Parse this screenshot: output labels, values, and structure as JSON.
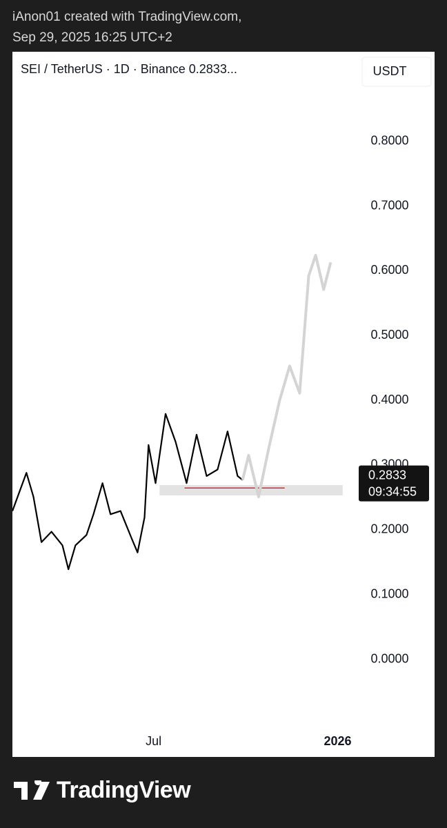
{
  "header": {
    "credit": "iAnon01 created with TradingView.com,",
    "date": "Sep 29, 2025 16:25 UTC+2"
  },
  "chart_data": {
    "type": "line",
    "title": "SEI / TetherUS · 1D · Binance  0.2833...",
    "currency": "USDT",
    "series": [
      {
        "color": "#000000",
        "x": [
          40,
          54,
          61,
          69,
          79,
          90,
          96,
          103,
          114,
          121,
          130,
          138,
          148,
          159,
          165,
          172,
          176,
          183,
          193,
          203,
          214,
          224,
          234,
          245,
          255,
          265,
          270
        ],
        "values": [
          0.229,
          0.288,
          0.251,
          0.181,
          0.197,
          0.176,
          0.139,
          0.176,
          0.192,
          0.224,
          0.272,
          0.224,
          0.229,
          0.187,
          0.165,
          0.219,
          0.331,
          0.272,
          0.379,
          0.336,
          0.272,
          0.347,
          0.283,
          0.293,
          0.352,
          0.283,
          0.277
        ]
      },
      {
        "color": "#d4d4d4",
        "x": [
          270,
          276,
          286,
          296,
          307,
          317,
          327,
          336,
          343,
          351,
          358
        ],
        "values": [
          0.277,
          0.315,
          0.251,
          0.325,
          0.4,
          0.453,
          0.411,
          0.592,
          0.624,
          0.571,
          0.613
        ]
      }
    ],
    "zone": {
      "xlim": [
        187,
        370
      ],
      "ylim": [
        0.253,
        0.269
      ],
      "color": "#e3e3e3"
    },
    "support_line": {
      "x": [
        212,
        312
      ],
      "y": 0.2645,
      "color": "#e0202a"
    },
    "last_price": 0.2833,
    "countdown": "09:34:55",
    "xlim": [
      40,
      386
    ],
    "ylim": [
      -0.09,
      0.935
    ],
    "xticks": [
      {
        "value": 181,
        "label": "Jul"
      },
      {
        "value": 365,
        "label": "2026"
      }
    ],
    "yticks": [
      {
        "value": 0,
        "label": "0.0000"
      },
      {
        "value": 0.1,
        "label": "0.1000"
      },
      {
        "value": 0.2,
        "label": "0.2000"
      },
      {
        "value": 0.3,
        "label": "0.3000"
      },
      {
        "value": 0.4,
        "label": "0.4000"
      },
      {
        "value": 0.5,
        "label": "0.5000"
      },
      {
        "value": 0.6,
        "label": "0.6000"
      },
      {
        "value": 0.7,
        "label": "0.7000"
      },
      {
        "value": 0.8,
        "label": "0.8000"
      }
    ]
  },
  "footer": {
    "brand": "TradingView"
  }
}
